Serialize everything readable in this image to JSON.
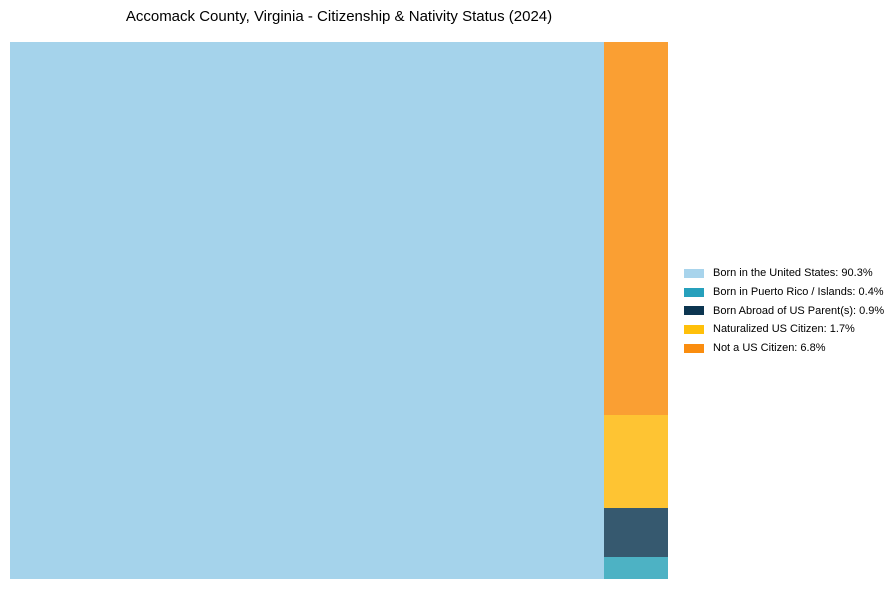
{
  "chart_data": {
    "type": "treemap",
    "layout": "slice-dice",
    "title": "Accomack County, Virginia - Citizenship & Nativity Status (2024)",
    "unit": "%",
    "categories": [
      "Born in the United States",
      "Born in Puerto Rico / Islands",
      "Born Abroad of US Parent(s)",
      "Naturalized US Citizen",
      "Not a US Citizen"
    ],
    "values": [
      90.3,
      0.4,
      0.9,
      1.7,
      6.8
    ],
    "legend_position": "right-center",
    "segments": [
      {
        "label": "Born in the United States",
        "value": 90.3,
        "legend_text": "Born in the United States: 90.3%",
        "legend_color": "#A8D4EC",
        "block_color": "#A5D3EB"
      },
      {
        "label": "Born in Puerto Rico / Islands",
        "value": 0.4,
        "legend_text": "Born in Puerto Rico / Islands: 0.4%",
        "legend_color": "#26A0BC",
        "block_color": "#4DB2C4"
      },
      {
        "label": "Born Abroad of US Parent(s)",
        "value": 0.9,
        "legend_text": "Born Abroad of US Parent(s): 0.9%",
        "legend_color": "#0C3550",
        "block_color": "#36596F"
      },
      {
        "label": "Naturalized US Citizen",
        "value": 1.7,
        "legend_text": "Naturalized US Citizen: 1.7%",
        "legend_color": "#FFC00A",
        "block_color": "#FEC433"
      },
      {
        "label": "Not a US Citizen",
        "value": 6.8,
        "legend_text": "Not a US Citizen: 6.8%",
        "legend_color": "#FA8D0F",
        "block_color": "#FA9F33"
      }
    ],
    "background_color": "#FFFFFF",
    "text_color": "#000000"
  }
}
